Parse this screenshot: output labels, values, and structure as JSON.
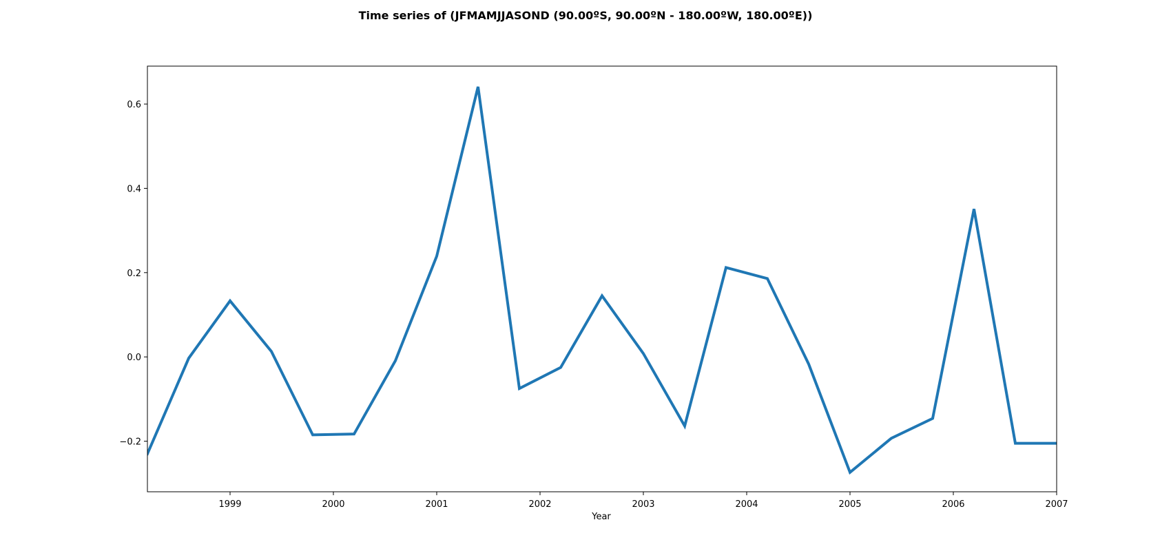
{
  "chart_data": {
    "type": "line",
    "title": "Time series of  (JFMAMJJASOND (90.00ºS, 90.00ºN - 180.00ºW, 180.00ºE))",
    "xlabel": "Year",
    "ylabel": "",
    "xlim": [
      1998.2,
      2007.0
    ],
    "ylim": [
      -0.32,
      0.69
    ],
    "x_ticks": [
      1999,
      2000,
      2001,
      2002,
      2003,
      2004,
      2005,
      2006,
      2007
    ],
    "y_ticks": [
      -0.2,
      0.0,
      0.2,
      0.4,
      0.6
    ],
    "y_tick_labels": [
      "−0.2",
      "0.0",
      "0.2",
      "0.4",
      "0.6"
    ],
    "grid": false,
    "series": [
      {
        "color": "#1f77b4",
        "x": [
          1998.2,
          1998.6,
          1999.0,
          1999.4,
          1999.8,
          2000.2,
          2000.6,
          2001.0,
          2001.4,
          2001.8,
          2002.2,
          2002.6,
          2003.0,
          2003.4,
          2003.8,
          2004.2,
          2004.6,
          2005.0,
          2005.4,
          2005.8,
          2006.2,
          2006.6,
          2007.0
        ],
        "y": [
          -0.23,
          -0.003,
          0.133,
          0.013,
          -0.185,
          -0.183,
          -0.009,
          0.239,
          0.641,
          -0.075,
          -0.025,
          0.145,
          0.008,
          -0.164,
          0.212,
          0.186,
          -0.017,
          -0.274,
          -0.193,
          -0.146,
          0.351,
          -0.205,
          -0.205
        ]
      }
    ]
  }
}
